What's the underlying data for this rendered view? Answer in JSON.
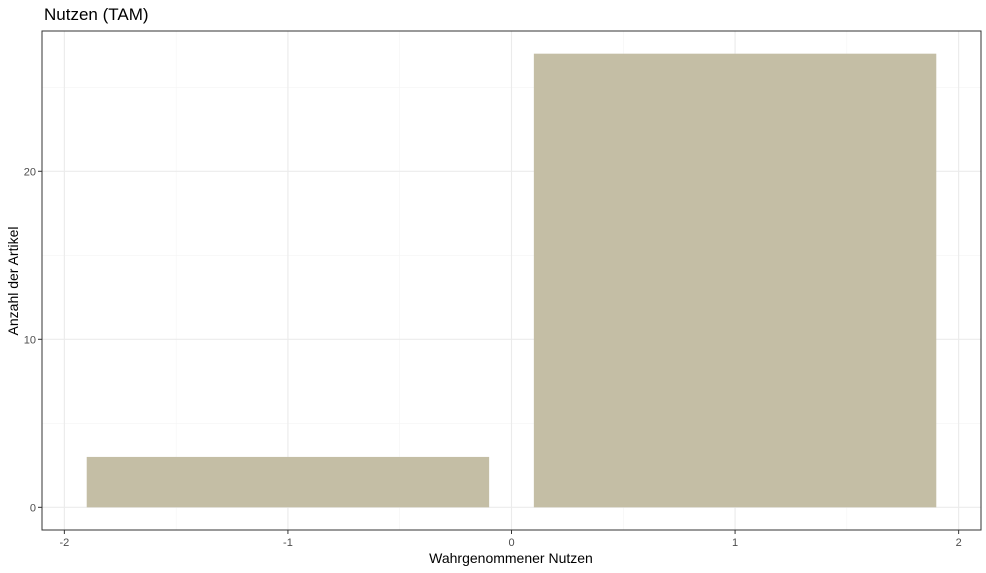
{
  "chart_data": {
    "type": "bar",
    "title": "Nutzen (TAM)",
    "xlabel": "Wahrgenommener Nutzen",
    "ylabel": "Anzahl der Artikel",
    "bars": [
      {
        "x_start": -1.9,
        "x_end": -0.1,
        "value": 3
      },
      {
        "x_start": 0.1,
        "x_end": 1.9,
        "value": 27
      }
    ],
    "xlim": [
      -2.1,
      2.1
    ],
    "ylim": [
      -1.35,
      28.35
    ],
    "x_ticks": [
      -2,
      -1,
      0,
      1,
      2
    ],
    "x_tick_labels": [
      "-2",
      "-1",
      "0",
      "1",
      "2"
    ],
    "y_ticks": [
      0,
      10,
      20
    ],
    "y_tick_labels": [
      "0",
      "10",
      "20"
    ],
    "x_minor_ticks": [
      -1.5,
      -0.5,
      0.5,
      1.5
    ],
    "y_minor_ticks": [
      5,
      15,
      25
    ],
    "grid": true,
    "legend": "none",
    "colors": {
      "bar": "#c4bea5",
      "grid_major": "#ebebeb",
      "grid_minor": "#f4f4f4",
      "panel_border": "#333333",
      "tick_label": "#4d4d4d"
    }
  }
}
